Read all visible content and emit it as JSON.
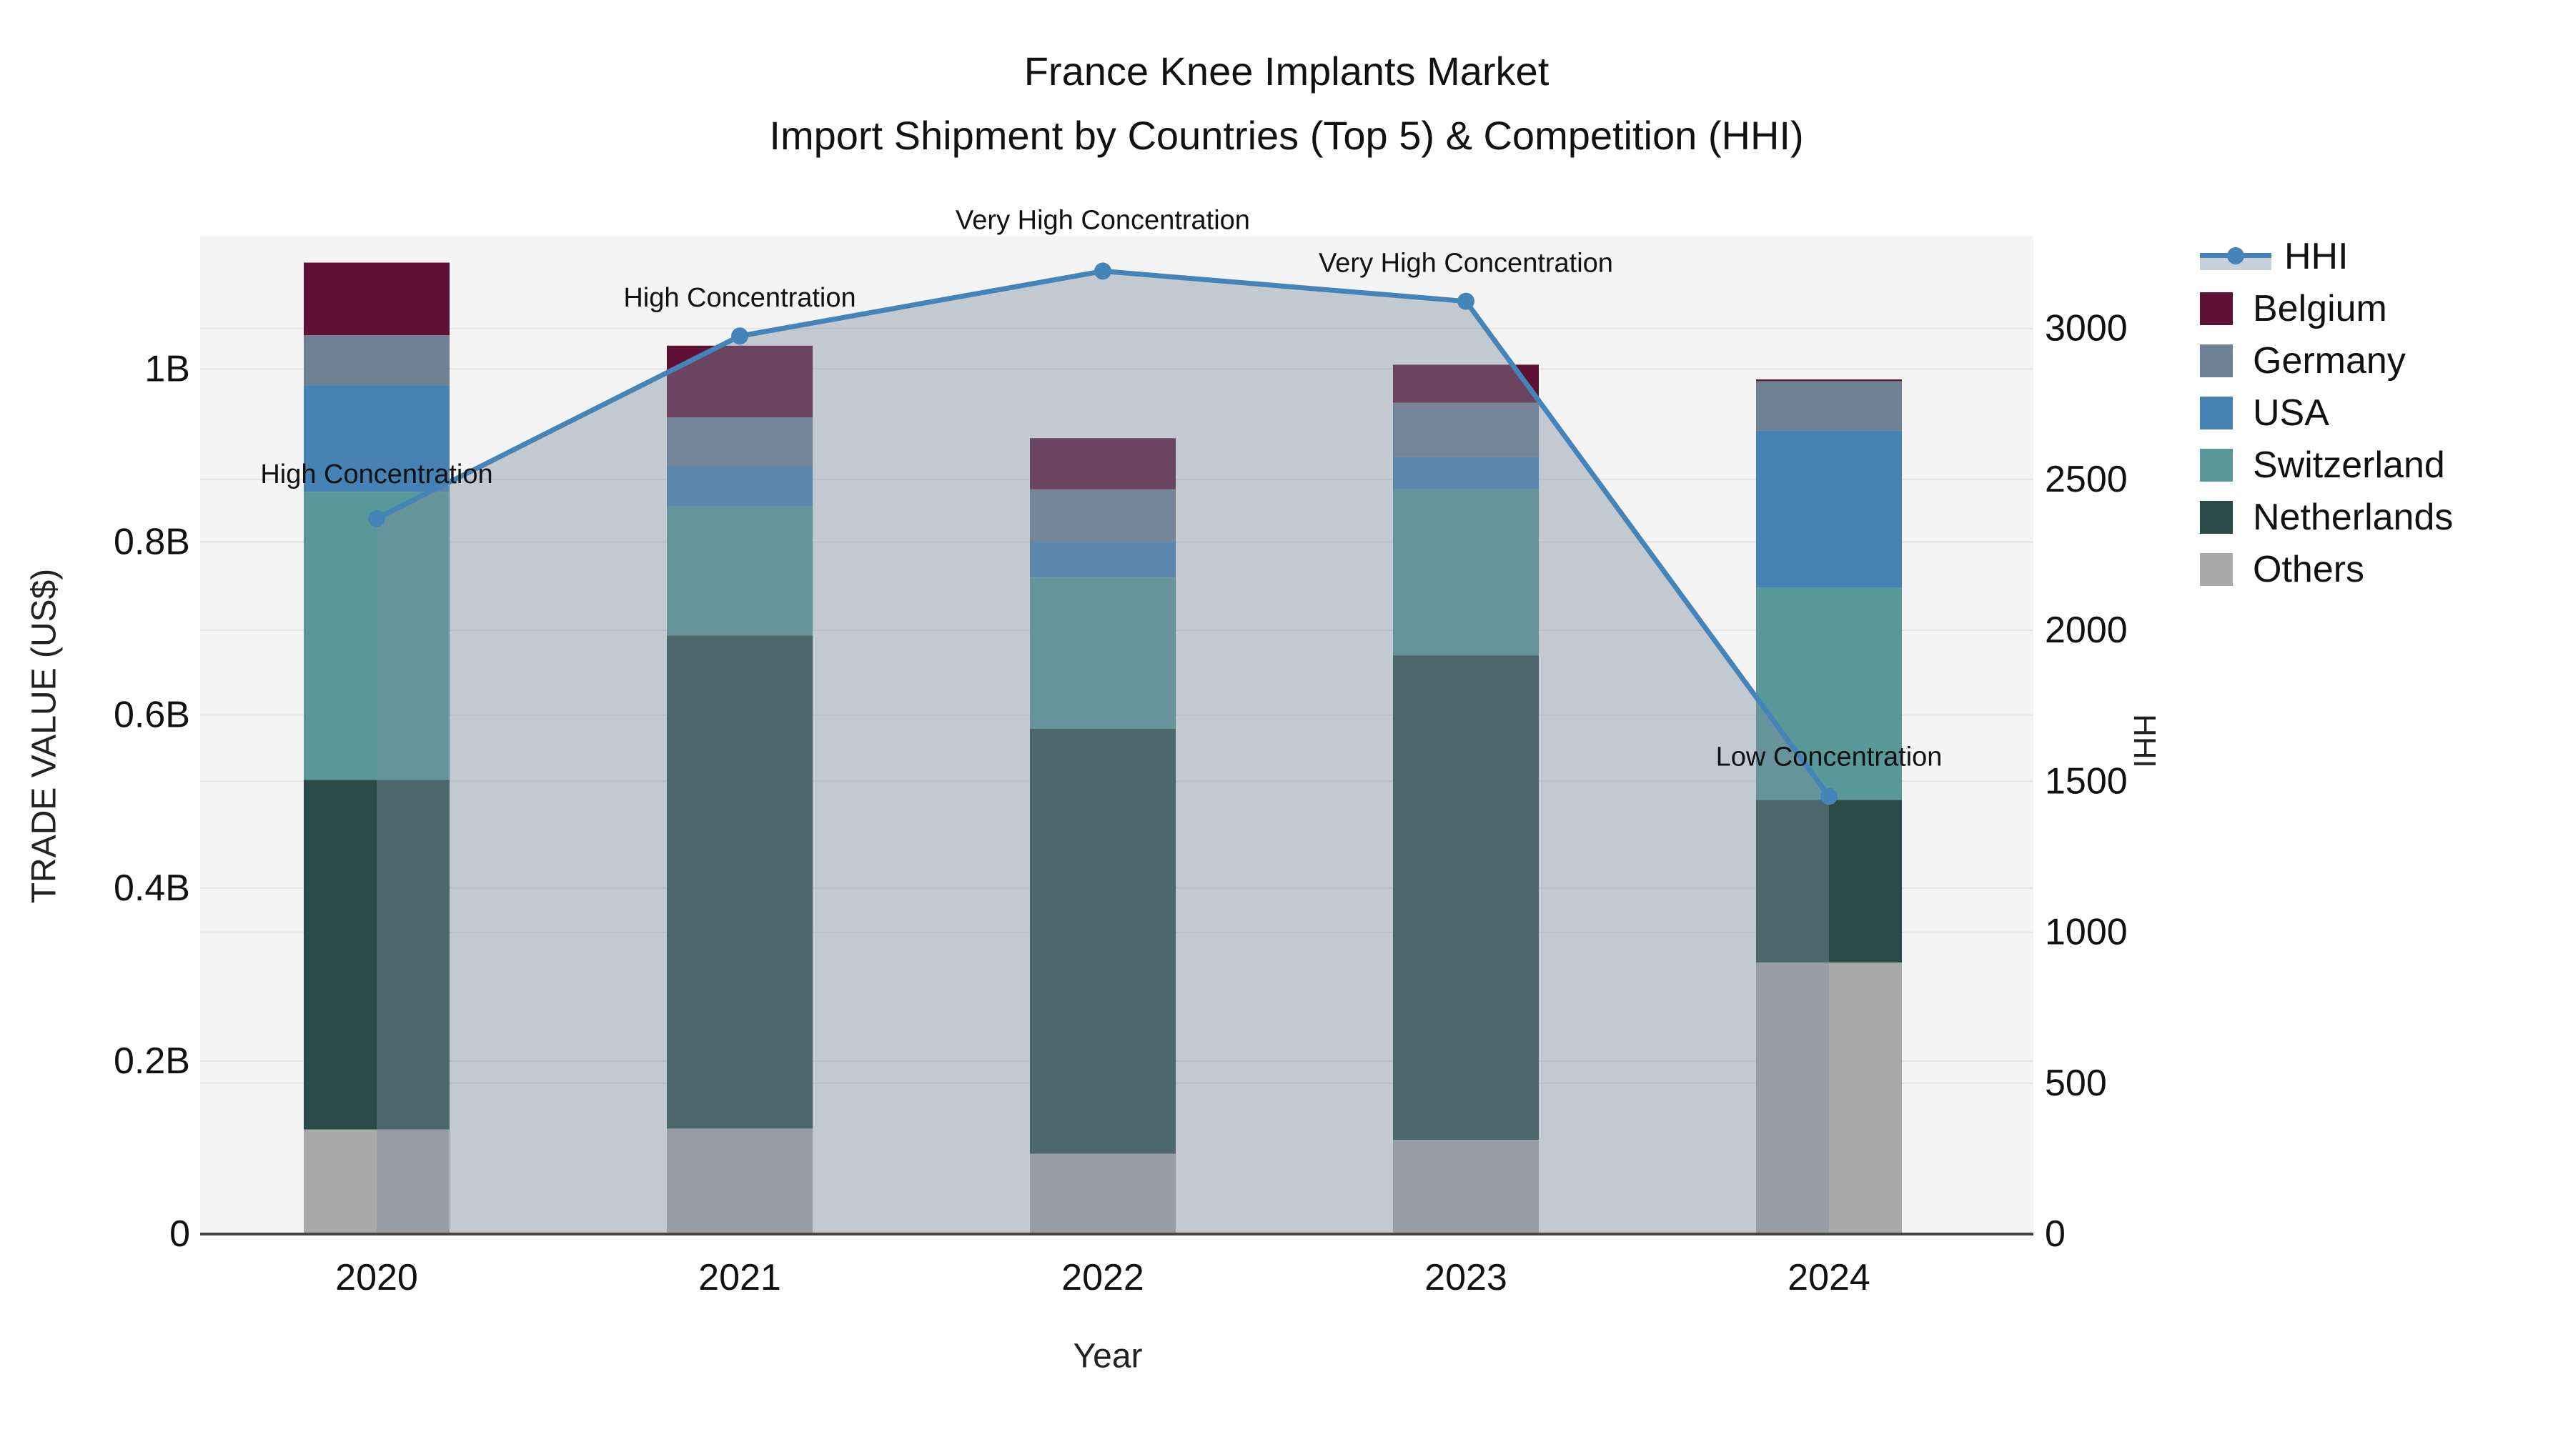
{
  "header": {
    "title_line1": "France Knee Implants Market",
    "title_line2": "Import Shipment by Countries (Top 5) & Competition (HHI)"
  },
  "chart_data": {
    "type": "bar+line",
    "title": "France Knee Implants Market — Import Shipment by Countries (Top 5) & Competition (HHI)",
    "xlabel": "Year",
    "ylabel_left": "TRADE VALUE (US$)",
    "ylabel_right": "HHI",
    "categories": [
      "2020",
      "2021",
      "2022",
      "2023",
      "2024"
    ],
    "bar_unit": "billions USD",
    "stack_order_bottom_to_top": [
      "Others",
      "Netherlands",
      "Switzerland",
      "USA",
      "Germany",
      "Belgium"
    ],
    "series": [
      {
        "name": "Others",
        "color": "#A9A9A9",
        "values": [
          0.121,
          0.122,
          0.093,
          0.109,
          0.314
        ]
      },
      {
        "name": "Netherlands",
        "color": "#2A4A47",
        "values": [
          0.404,
          0.57,
          0.491,
          0.56,
          0.188
        ]
      },
      {
        "name": "Switzerland",
        "color": "#589898",
        "values": [
          0.333,
          0.149,
          0.175,
          0.192,
          0.245
        ]
      },
      {
        "name": "USA",
        "color": "#4682B4",
        "values": [
          0.123,
          0.047,
          0.041,
          0.037,
          0.182
        ]
      },
      {
        "name": "Germany",
        "color": "#6E8093",
        "values": [
          0.058,
          0.056,
          0.061,
          0.063,
          0.057
        ]
      },
      {
        "name": "Belgium",
        "color": "#5E1135",
        "values": [
          0.084,
          0.083,
          0.059,
          0.044,
          0.002
        ]
      }
    ],
    "hhi_series": {
      "name": "HHI",
      "color": "#4584B8",
      "fill_color": "rgba(125,140,160,0.42)",
      "values": [
        2370,
        2975,
        3190,
        3090,
        1450
      ]
    },
    "annotations": [
      "High Concentration",
      "High Concentration",
      "Very High Concentration",
      "Very High Concentration",
      "Low Concentration"
    ],
    "y_left_ticks": [
      "0",
      "0.2B",
      "0.4B",
      "0.6B",
      "0.8B",
      "1B"
    ],
    "y_left_tick_values": [
      0,
      0.2,
      0.4,
      0.6,
      0.8,
      1.0
    ],
    "y_right_ticks": [
      "0",
      "500",
      "1000",
      "1500",
      "2000",
      "2500",
      "3000"
    ],
    "y_right_tick_values": [
      0,
      500,
      1000,
      1500,
      2000,
      2500,
      3000
    ],
    "ylim_left": [
      0,
      1.154
    ],
    "ylim_right": [
      0,
      3307
    ],
    "grid": true,
    "legend_position": "right",
    "legend_order": [
      "HHI",
      "Belgium",
      "Germany",
      "USA",
      "Switzerland",
      "Netherlands",
      "Others"
    ]
  },
  "style": {
    "plot_bg": "#f4f4f4",
    "grid_color": "#e4e4e4",
    "axis_line_color": "#444444",
    "text_color": "#111111"
  }
}
